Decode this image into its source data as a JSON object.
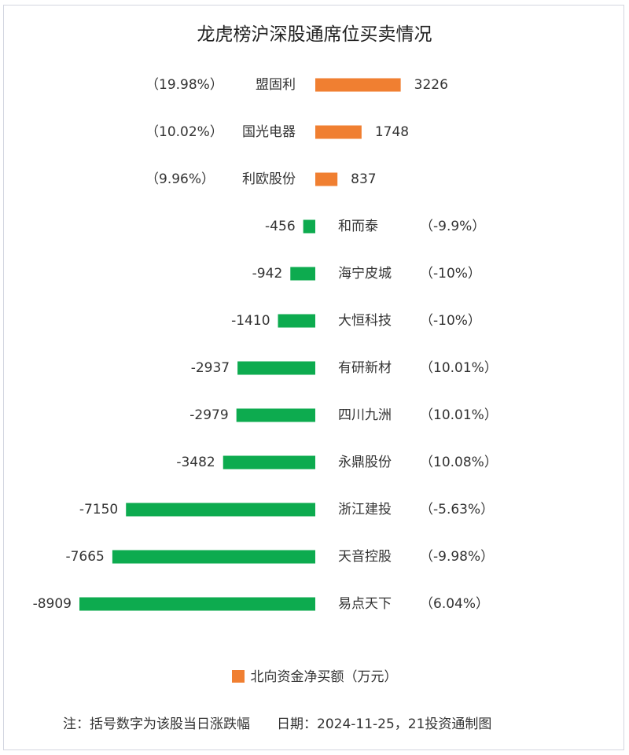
{
  "colors": {
    "positive": "#f07f31",
    "negative": "#0dab4f",
    "text": "#333333",
    "border": "#d3d6e0"
  },
  "footnote": {
    "note": "注：括号数字为该股当日涨跌幅",
    "date": "日期：2024-11-25，21投资通制图"
  },
  "chart_data": {
    "type": "bar",
    "orientation": "horizontal",
    "title": "龙虎榜沪深股通席位买卖情况",
    "legend": "北向资金净买额（万元）",
    "legend_position": "bottom",
    "grid": false,
    "unit": "万元",
    "xlim": [
      -8909,
      3226
    ],
    "rows": [
      {
        "name": "盟固利",
        "value": 3226,
        "change": "（19.98%）"
      },
      {
        "name": "国光电器",
        "value": 1748,
        "change": "（10.02%）"
      },
      {
        "name": "利欧股份",
        "value": 837,
        "change": "（9.96%）"
      },
      {
        "name": "和而泰",
        "value": -456,
        "change": "（-9.9%）"
      },
      {
        "name": "海宁皮城",
        "value": -942,
        "change": "（-10%）"
      },
      {
        "name": "大恒科技",
        "value": -1410,
        "change": "（-10%）"
      },
      {
        "name": "有研新材",
        "value": -2937,
        "change": "（10.01%）"
      },
      {
        "name": "四川九洲",
        "value": -2979,
        "change": "（10.01%）"
      },
      {
        "name": "永鼎股份",
        "value": -3482,
        "change": "（10.08%）"
      },
      {
        "name": "浙江建投",
        "value": -7150,
        "change": "（-5.63%）"
      },
      {
        "name": "天音控股",
        "value": -7665,
        "change": "（-9.98%）"
      },
      {
        "name": "易点天下",
        "value": -8909,
        "change": "（6.04%）"
      }
    ]
  }
}
